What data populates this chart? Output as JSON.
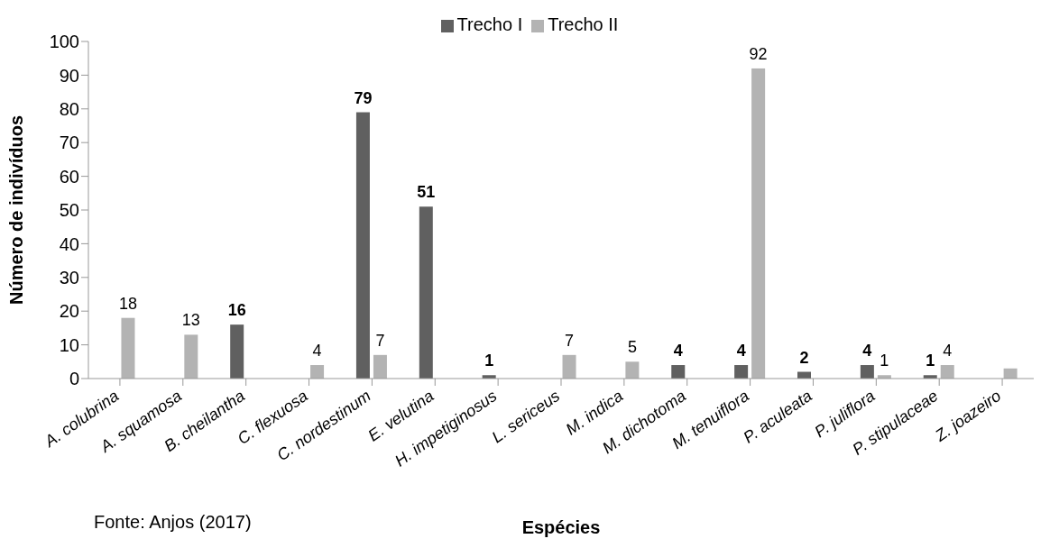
{
  "chart_data": {
    "type": "bar",
    "xlabel": "Espécies",
    "ylabel": "Número de indivíduos",
    "categories": [
      "A. colubrina",
      "A. squamosa",
      "B. cheilantha",
      "C. flexuosa",
      "C. nordestinum",
      "E. velutina",
      "H. impetiginosus",
      "L. sericeus",
      "M. indica",
      "M. dichotoma",
      "M. tenuiflora",
      "P. aculeata",
      "P. juliflora",
      "P. stipulaceae",
      "Z. joazeiro"
    ],
    "series": [
      {
        "name": "Trecho I",
        "color": "#606060",
        "values": [
          null,
          null,
          16,
          null,
          79,
          51,
          1,
          null,
          null,
          4,
          4,
          2,
          4,
          1,
          null
        ],
        "value_labels": [
          null,
          null,
          "16",
          null,
          "79",
          "51",
          "1",
          null,
          null,
          "4",
          "4",
          "2",
          "4",
          "1",
          null
        ]
      },
      {
        "name": "Trecho II",
        "color": "#b3b3b3",
        "values": [
          18,
          13,
          null,
          4,
          7,
          null,
          null,
          7,
          5,
          null,
          92,
          null,
          1,
          4,
          3
        ],
        "value_labels": [
          "18",
          "13",
          null,
          "4",
          "7",
          null,
          null,
          "7",
          "5",
          null,
          "92",
          null,
          "1",
          "4",
          null
        ]
      }
    ],
    "ylim": [
      0,
      100
    ],
    "yticks": [
      0,
      10,
      20,
      30,
      40,
      50,
      60,
      70,
      80,
      90,
      100
    ],
    "grid": false,
    "legend": "top",
    "annotations": [
      "Fonte: Anjos (2017)"
    ]
  }
}
